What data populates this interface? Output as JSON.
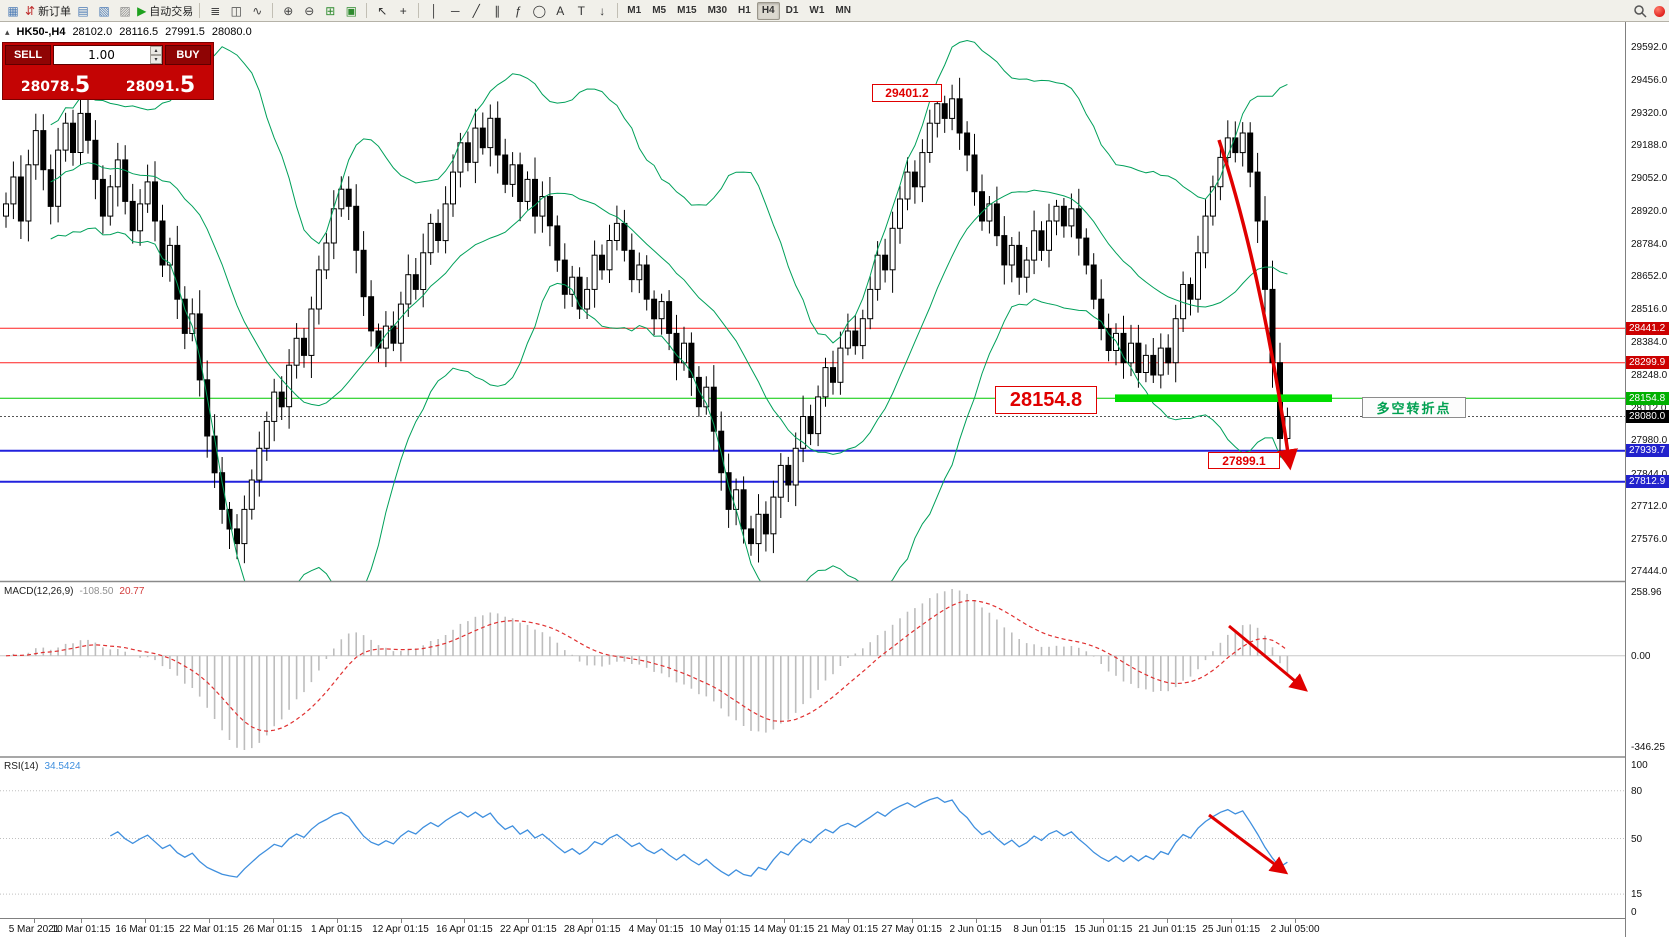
{
  "toolbar": {
    "items": [
      {
        "type": "button",
        "name": "chart-window-icon",
        "glyph": "▦",
        "color": "#4a7ab5"
      },
      {
        "type": "button",
        "name": "new-order-button",
        "glyph": "⇵",
        "color": "#c03030",
        "label": "新订单"
      },
      {
        "type": "button",
        "name": "market-watch-icon",
        "glyph": "▤",
        "color": "#4a7ab5"
      },
      {
        "type": "button",
        "name": "navigator-icon",
        "glyph": "▧",
        "color": "#4a7ab5"
      },
      {
        "type": "button",
        "name": "terminal-panel-icon",
        "glyph": "▨",
        "color": "#8a8a8a"
      },
      {
        "type": "button",
        "name": "autotrading-button",
        "glyph": "▶",
        "color": "#1ea11e",
        "label": "自动交易"
      },
      {
        "type": "sep"
      },
      {
        "type": "button",
        "name": "bars-chart-type-icon",
        "glyph": "≣",
        "color": "#444444"
      },
      {
        "type": "button",
        "name": "candles-chart-type-icon",
        "glyph": "◫",
        "color": "#444444"
      },
      {
        "type": "button",
        "name": "line-chart-type-icon",
        "glyph": "∿",
        "color": "#444444"
      },
      {
        "type": "sep"
      },
      {
        "type": "button",
        "name": "zoom-in-icon",
        "glyph": "⊕",
        "color": "#444444"
      },
      {
        "type": "button",
        "name": "zoom-out-icon",
        "glyph": "⊖",
        "color": "#444444"
      },
      {
        "type": "button",
        "name": "tile-windows-icon",
        "glyph": "⊞",
        "color": "#2e8b2e"
      },
      {
        "type": "button",
        "name": "cascade-windows-icon",
        "glyph": "▣",
        "color": "#2e8b2e"
      },
      {
        "type": "sep"
      },
      {
        "type": "button",
        "name": "cursor-tool-icon",
        "glyph": "↖",
        "color": "#333333"
      },
      {
        "type": "button",
        "name": "crosshair-tool-icon",
        "glyph": "+",
        "color": "#333333"
      },
      {
        "type": "sep"
      },
      {
        "type": "button",
        "name": "vertical-line-tool-icon",
        "glyph": "│",
        "color": "#333333"
      },
      {
        "type": "button",
        "name": "horizontal-line-tool-icon",
        "glyph": "─",
        "color": "#333333"
      },
      {
        "type": "button",
        "name": "trendline-tool-icon",
        "glyph": "╱",
        "color": "#333333"
      },
      {
        "type": "button",
        "name": "channel-tool-icon",
        "glyph": "∥",
        "color": "#333333"
      },
      {
        "type": "button",
        "name": "fibonacci-tool-icon",
        "glyph": "ƒ",
        "color": "#333333"
      },
      {
        "type": "button",
        "name": "shapes-tool-icon",
        "glyph": "◯",
        "color": "#333333"
      },
      {
        "type": "button",
        "name": "text-tool-icon",
        "glyph": "A",
        "color": "#333333"
      },
      {
        "type": "button",
        "name": "text-label-tool-icon",
        "glyph": "T",
        "color": "#333333"
      },
      {
        "type": "button",
        "name": "arrow-objects-icon",
        "glyph": "↓",
        "color": "#333333"
      },
      {
        "type": "sep"
      }
    ],
    "timeframes": [
      "M1",
      "M5",
      "M15",
      "M30",
      "H1",
      "H4",
      "D1",
      "W1",
      "MN"
    ],
    "active_timeframe": "H4"
  },
  "chart": {
    "symbol_period": "HK50-,H4",
    "open": "28102.0",
    "high": "28116.5",
    "low": "27991.5",
    "close": "28080.0"
  },
  "one_click": {
    "sell_label": "SELL",
    "buy_label": "BUY",
    "volume": "1.00",
    "sell_price_base": "28078.",
    "sell_price_big": "5",
    "buy_price_base": "28091.",
    "buy_price_big": "5"
  },
  "annotations": {
    "peak_label": "29401.2",
    "level_label": "28154.8",
    "low_label": "27899.1",
    "pivot_label": "多空转折点"
  },
  "levels": [
    {
      "price": 28441.2,
      "color": "#ff2020",
      "style": "solid",
      "width": 1
    },
    {
      "price": 28299.9,
      "color": "#ff2020",
      "style": "solid",
      "width": 1
    },
    {
      "price": 28154.8,
      "color": "#00c800",
      "style": "solid",
      "width": 1
    },
    {
      "price": 27939.7,
      "color": "#2222dd",
      "style": "solid",
      "width": 2
    },
    {
      "price": 27812.9,
      "color": "#2222dd",
      "style": "solid",
      "width": 2
    },
    {
      "price": 28080.0,
      "color": "#555555",
      "style": "dot",
      "width": 1
    }
  ],
  "price_axis": {
    "ticks": [
      "29592.0",
      "29456.0",
      "29320.0",
      "29188.0",
      "29052.0",
      "28920.0",
      "28784.0",
      "28652.0",
      "28516.0",
      "28384.0",
      "28248.0",
      "28112.0",
      "27980.0",
      "27844.0",
      "27712.0",
      "27576.0",
      "27444.0"
    ],
    "markers": [
      {
        "text": "28441.2",
        "price": 28441.2,
        "color": "#cc0000"
      },
      {
        "text": "28299.9",
        "price": 28299.9,
        "color": "#cc0000"
      },
      {
        "text": "28154.8",
        "price": 28154.8,
        "color": "#00b000"
      },
      {
        "text": "28080.0",
        "price": 28080.0,
        "color": "#000000"
      },
      {
        "text": "27939.7",
        "price": 27939.7,
        "color": "#2222cc"
      },
      {
        "text": "27812.9",
        "price": 27812.9,
        "color": "#2222cc"
      }
    ]
  },
  "macd": {
    "name": "MACD(12,26,9)",
    "value_main": "-108.50",
    "value_signal": "20.77",
    "axis": [
      "258.96",
      "0.00",
      "-346.25"
    ]
  },
  "rsi": {
    "name": "RSI(14)",
    "value": "34.5424",
    "axis": [
      "100",
      "80",
      "50",
      "15",
      "0"
    ]
  },
  "time_axis": {
    "labels": [
      "5 Mar 2021",
      "10 Mar 01:15",
      "16 Mar 01:15",
      "22 Mar 01:15",
      "26 Mar 01:15",
      "1 Apr 01:15",
      "12 Apr 01:15",
      "16 Apr 01:15",
      "22 Apr 01:15",
      "28 Apr 01:15",
      "4 May 01:15",
      "10 May 01:15",
      "14 May 01:15",
      "21 May 01:15",
      "27 May 01:15",
      "2 Jun 01:15",
      "8 Jun 01:15",
      "15 Jun 01:15",
      "21 Jun 01:15",
      "25 Jun 01:15",
      "2 Jul 05:00"
    ]
  },
  "chart_data": {
    "type": "candlestick",
    "symbol": "HK50-",
    "timeframe": "H4",
    "first_open": 28900,
    "zone_level": 28154.8,
    "price_axis_range": [
      27411,
      29686
    ],
    "closes": [
      28950,
      29060,
      28880,
      29110,
      29250,
      29090,
      28940,
      29170,
      29280,
      29160,
      29320,
      29210,
      29050,
      28900,
      29020,
      29130,
      28960,
      28840,
      28950,
      29040,
      28880,
      28700,
      28780,
      28560,
      28420,
      28500,
      28230,
      28000,
      27850,
      27700,
      27620,
      27560,
      27700,
      27820,
      27950,
      28060,
      28180,
      28120,
      28290,
      28400,
      28330,
      28520,
      28680,
      28790,
      28930,
      29010,
      28940,
      28760,
      28570,
      28430,
      28360,
      28450,
      28380,
      28540,
      28660,
      28600,
      28750,
      28870,
      28800,
      28950,
      29080,
      29200,
      29120,
      29260,
      29180,
      29300,
      29150,
      29030,
      29110,
      28960,
      29050,
      28900,
      28980,
      28860,
      28720,
      28580,
      28650,
      28520,
      28600,
      28740,
      28680,
      28800,
      28870,
      28760,
      28640,
      28700,
      28560,
      28480,
      28550,
      28420,
      28300,
      28380,
      28240,
      28120,
      28200,
      28020,
      27850,
      27700,
      27780,
      27620,
      27560,
      27680,
      27600,
      27750,
      27880,
      27800,
      27950,
      28080,
      28010,
      28160,
      28280,
      28220,
      28360,
      28430,
      28370,
      28480,
      28600,
      28740,
      28680,
      28850,
      28970,
      29080,
      29020,
      29160,
      29280,
      29360,
      29300,
      29380,
      29240,
      29150,
      29000,
      28880,
      28950,
      28820,
      28700,
      28780,
      28650,
      28720,
      28840,
      28760,
      28880,
      28940,
      28860,
      28930,
      28810,
      28700,
      28560,
      28440,
      28350,
      28420,
      28300,
      28380,
      28260,
      28330,
      28250,
      28360,
      28300,
      28480,
      28620,
      28560,
      28750,
      28900,
      29020,
      29140,
      29220,
      29160,
      29240,
      29080,
      28880,
      28600,
      28300,
      27990,
      28080
    ],
    "indicators": [
      {
        "name": "Bollinger Bands",
        "period": 20,
        "deviation": 2
      },
      {
        "name": "MACD",
        "fast": 12,
        "slow": 26,
        "signal": 9,
        "current_values": [
          -108.5,
          20.77
        ]
      },
      {
        "name": "RSI",
        "period": 14,
        "current_value": 34.5424
      }
    ],
    "key_levels": [
      29401.2,
      28441.2,
      28299.9,
      28154.8,
      28080.0,
      27939.7,
      27899.1,
      27812.9
    ]
  }
}
